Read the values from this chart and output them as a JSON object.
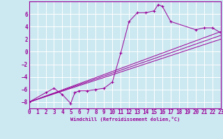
{
  "xlabel": "Windchill (Refroidissement éolien,°C)",
  "bg_color": "#cce8f0",
  "line_color": "#990099",
  "grid_color": "#ffffff",
  "xlim": [
    0,
    23
  ],
  "ylim": [
    -9,
    8
  ],
  "yticks": [
    -8,
    -6,
    -4,
    -2,
    0,
    2,
    4,
    6
  ],
  "xticks": [
    0,
    1,
    2,
    3,
    4,
    5,
    6,
    7,
    8,
    9,
    10,
    11,
    12,
    13,
    14,
    15,
    16,
    17,
    18,
    19,
    20,
    21,
    22,
    23
  ],
  "series": [
    [
      0,
      -8.0
    ],
    [
      2,
      -6.5
    ],
    [
      3,
      -5.8
    ],
    [
      4,
      -6.8
    ],
    [
      5,
      -8.2
    ],
    [
      5.5,
      -6.5
    ],
    [
      6,
      -6.2
    ],
    [
      7,
      -6.2
    ],
    [
      8,
      -6.0
    ],
    [
      9,
      -5.8
    ],
    [
      10,
      -4.8
    ],
    [
      11,
      -0.2
    ],
    [
      12,
      4.8
    ],
    [
      13,
      6.2
    ],
    [
      14,
      6.2
    ],
    [
      15,
      6.5
    ],
    [
      15.5,
      7.5
    ],
    [
      16,
      7.2
    ],
    [
      17,
      4.8
    ],
    [
      20,
      3.5
    ],
    [
      21,
      3.8
    ],
    [
      22,
      3.8
    ],
    [
      23,
      3.0
    ]
  ],
  "ref_lines": [
    [
      [
        0,
        -8.0
      ],
      [
        23,
        3.2
      ]
    ],
    [
      [
        0,
        -8.0
      ],
      [
        23,
        2.6
      ]
    ],
    [
      [
        0,
        -8.0
      ],
      [
        23,
        2.0
      ]
    ]
  ],
  "xlabel_fontsize": 5.0,
  "tick_fontsize": 5.5
}
